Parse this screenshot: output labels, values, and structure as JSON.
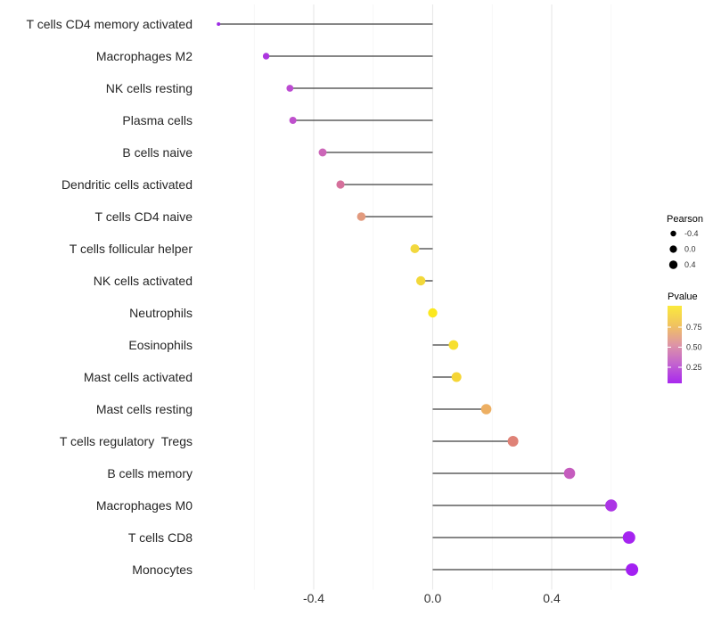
{
  "chart_data": {
    "type": "lollipop",
    "title": "",
    "xlabel": "",
    "ylabel": "",
    "orientation": "horizontal",
    "grid": "vertical-major-and-minor, no horizontal gridlines, white background",
    "xlim": [
      -0.79,
      0.74
    ],
    "x_ticks_major": [
      -0.4,
      0.0,
      0.4
    ],
    "x_tick_labels": [
      "-0.4",
      "0.0",
      "0.4"
    ],
    "x_ticks_minor": [
      -0.6,
      -0.2,
      0.2,
      0.6
    ],
    "stem_color": "#3E3E3E",
    "points": [
      {
        "label": "T cells CD4 memory activated",
        "pearson": -0.72,
        "pvalue": 0.13,
        "color": "#9C2BE3",
        "radius": 2.0
      },
      {
        "label": "Macrophages M2",
        "pearson": -0.56,
        "pvalue": 0.12,
        "color": "#AC36DF",
        "radius": 3.7
      },
      {
        "label": "NK cells resting",
        "pearson": -0.48,
        "pvalue": 0.2,
        "color": "#BC4BD2",
        "radius": 3.9
      },
      {
        "label": "Plasma cells",
        "pearson": -0.47,
        "pvalue": 0.21,
        "color": "#BF50CD",
        "radius": 4.0
      },
      {
        "label": "B cells naive",
        "pearson": -0.37,
        "pvalue": 0.33,
        "color": "#CC66B8",
        "radius": 4.5
      },
      {
        "label": "Dendritic cells activated",
        "pearson": -0.31,
        "pvalue": 0.4,
        "color": "#D5709B",
        "radius": 4.6
      },
      {
        "label": "T cells CD4 naive",
        "pearson": -0.24,
        "pvalue": 0.55,
        "color": "#E29A7E",
        "radius": 4.8
      },
      {
        "label": "T cells follicular helper",
        "pearson": -0.06,
        "pvalue": 0.82,
        "color": "#F2D83E",
        "radius": 5.0
      },
      {
        "label": "NK cells activated",
        "pearson": -0.04,
        "pvalue": 0.83,
        "color": "#F2D83A",
        "radius": 5.2
      },
      {
        "label": "Neutrophils",
        "pearson": 0.0,
        "pvalue": 0.95,
        "color": "#FBE81F",
        "radius": 5.2
      },
      {
        "label": "Eosinophils",
        "pearson": 0.07,
        "pvalue": 0.88,
        "color": "#F7DF2E",
        "radius": 5.4
      },
      {
        "label": "Mast cells activated",
        "pearson": 0.08,
        "pvalue": 0.85,
        "color": "#F5D535",
        "radius": 5.5
      },
      {
        "label": "Mast cells resting",
        "pearson": 0.18,
        "pvalue": 0.65,
        "color": "#EDAF62",
        "radius": 5.8
      },
      {
        "label": "T cells regulatory  Tregs",
        "pearson": 0.27,
        "pvalue": 0.5,
        "color": "#DF8277",
        "radius": 6.0
      },
      {
        "label": "B cells memory",
        "pearson": 0.46,
        "pvalue": 0.27,
        "color": "#C55CBE",
        "radius": 6.3
      },
      {
        "label": "Macrophages M0",
        "pearson": 0.6,
        "pvalue": 0.1,
        "color": "#AC35E5",
        "radius": 6.7
      },
      {
        "label": "T cells CD8",
        "pearson": 0.66,
        "pvalue": 0.05,
        "color": "#A524F0",
        "radius": 7.0
      },
      {
        "label": "Monocytes",
        "pearson": 0.67,
        "pvalue": 0.05,
        "color": "#A321F2",
        "radius": 7.0
      }
    ],
    "legend_size": {
      "title": "Pearson",
      "dot_color": "#000000",
      "entries": [
        {
          "label": "-0.4",
          "radius": 3.2
        },
        {
          "label": "0.0",
          "radius": 4.1
        },
        {
          "label": "0.4",
          "radius": 4.7
        }
      ]
    },
    "legend_color": {
      "title": "Pvalue",
      "tick_labels": [
        "0.75",
        "0.50",
        "0.25"
      ],
      "gradient_top_to_bottom": [
        "#FBEA3C",
        "#F1C35F",
        "#DE95A5",
        "#C363CF",
        "#A828EE"
      ]
    }
  }
}
